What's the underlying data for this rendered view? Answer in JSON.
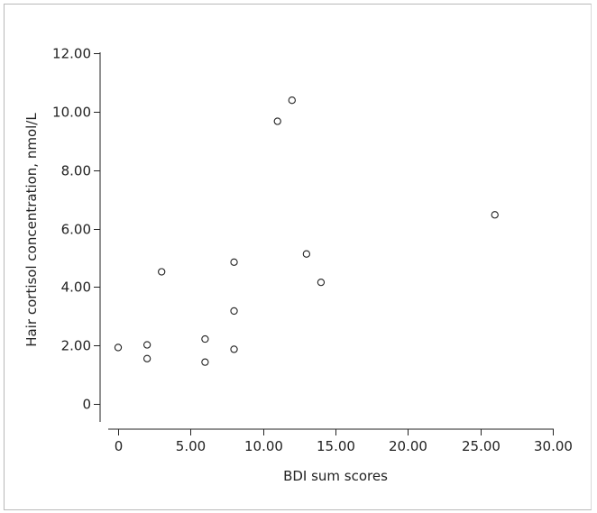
{
  "chart_data": {
    "type": "scatter",
    "title": "",
    "xlabel": "BDI sum scores",
    "ylabel": "Hair cortisol concentration, nmol/L",
    "xlim": [
      0,
      30
    ],
    "ylim": [
      0,
      12
    ],
    "x_ticks": [
      "0",
      "5.00",
      "10.00",
      "15.00",
      "20.00",
      "25.00",
      "30.00"
    ],
    "y_ticks": [
      "0",
      "2.00",
      "4.00",
      "6.00",
      "8.00",
      "10.00",
      "12.00"
    ],
    "grid": false,
    "legend": "none",
    "series": [
      {
        "points": [
          {
            "x": 0,
            "y": 1.93
          },
          {
            "x": 2,
            "y": 2.02
          },
          {
            "x": 2,
            "y": 1.55
          },
          {
            "x": 3,
            "y": 4.52
          },
          {
            "x": 6,
            "y": 2.22
          },
          {
            "x": 6,
            "y": 1.43
          },
          {
            "x": 8,
            "y": 4.85
          },
          {
            "x": 8,
            "y": 3.18
          },
          {
            "x": 8,
            "y": 1.87
          },
          {
            "x": 11,
            "y": 9.67
          },
          {
            "x": 12,
            "y": 10.39
          },
          {
            "x": 13,
            "y": 5.13
          },
          {
            "x": 14,
            "y": 4.16
          },
          {
            "x": 26,
            "y": 6.47
          }
        ]
      }
    ]
  }
}
